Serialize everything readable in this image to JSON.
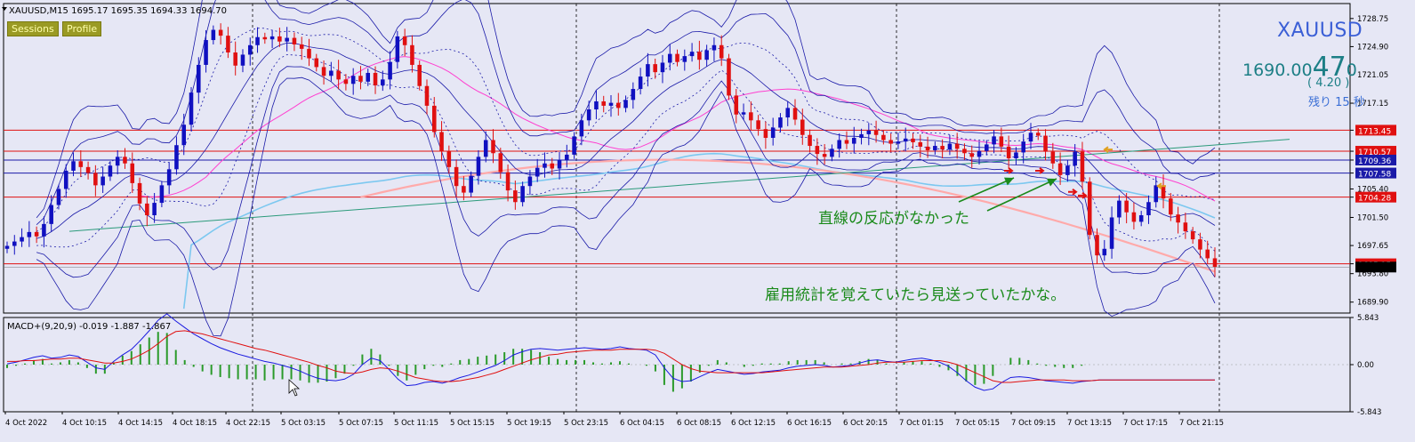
{
  "header": {
    "symbol_info": "XAUUSD,M15  1695.17 1695.35 1694.33 1694.70",
    "sessions_label": "Sessions",
    "profile_label": "Profile"
  },
  "quote": {
    "symbol": "XAUUSD",
    "bid_main": "1690.00",
    "bid_big": "47",
    "bid_small": "0",
    "change": "( 4.20 )",
    "remaining": "残り 15 秒"
  },
  "annotations": {
    "line_note": "直線の反応がなかった",
    "nfp_note": "雇用統計を覚えていたら見送っていたかな。"
  },
  "colors": {
    "background": "#e6e7f5",
    "bull_candle": "#1010c0",
    "bear_candle": "#e01010",
    "bollinger": "#1a1aa8",
    "ma_pink": "#ff40d0",
    "ma_salmon": "#ffaaaa",
    "ma_skyblue": "#7cc8f0",
    "trendline": "#2a9a7a",
    "macd_signal": "#e01010",
    "macd_line": "#1a1ae0",
    "macd_hist": "#2a9a2a",
    "annotation_arrow": "#1a8a1a"
  },
  "chart_data": [
    {
      "type": "candlestick",
      "title": "XAUUSD,M15",
      "ylim": [
        1688.4,
        1730.8
      ],
      "y_ticks": [
        "1728.75",
        "1724.90",
        "1721.05",
        "1717.15",
        "1713.45",
        "1710.57",
        "1709.36",
        "1707.58",
        "1705.40",
        "1704.28",
        "1701.50",
        "1697.65",
        "1695.15",
        "1693.80",
        "1689.90"
      ],
      "x_tick_labels": [
        "4 Oct 2022",
        "4 Oct 10:15",
        "4 Oct 14:15",
        "4 Oct 18:15",
        "4 Oct 22:15",
        "5 Oct 03:15",
        "5 Oct 07:15",
        "5 Oct 11:15",
        "5 Oct 15:15",
        "5 Oct 19:15",
        "5 Oct 23:15",
        "6 Oct 04:15",
        "6 Oct 08:15",
        "6 Oct 12:15",
        "6 Oct 16:15",
        "6 Oct 20:15",
        "7 Oct 01:15",
        "7 Oct 05:15",
        "7 Oct 09:15",
        "7 Oct 13:15",
        "7 Oct 17:15",
        "7 Oct 21:15"
      ],
      "horizontal_levels": [
        {
          "value": 1713.45,
          "label": "1713.45",
          "color": "#e01010"
        },
        {
          "value": 1710.57,
          "label": "1710.57",
          "color": "#e01010"
        },
        {
          "value": 1709.36,
          "label": "1709.36",
          "color": "#1a1aa8"
        },
        {
          "value": 1707.58,
          "label": "1707.58",
          "color": "#1a1aa8"
        },
        {
          "value": 1704.28,
          "label": "1704.28",
          "color": "#e01010"
        },
        {
          "value": 1695.15,
          "label": "1695.15",
          "color": "#e01010"
        }
      ],
      "close_series": [
        1697.6,
        1698.2,
        1698.8,
        1699.5,
        1698.9,
        1700.6,
        1703.2,
        1705.4,
        1707.9,
        1709.2,
        1708.4,
        1707.6,
        1705.9,
        1707.1,
        1708.6,
        1709.8,
        1708.9,
        1706.2,
        1703.4,
        1701.8,
        1703.5,
        1705.9,
        1708.1,
        1711.4,
        1714.2,
        1718.6,
        1722.4,
        1725.8,
        1727.2,
        1726.4,
        1724.1,
        1722.3,
        1723.8,
        1725.1,
        1726.2,
        1725.9,
        1726.3,
        1725.6,
        1726.1,
        1725.2,
        1724.6,
        1723.3,
        1722.1,
        1720.9,
        1721.6,
        1720.4,
        1719.8,
        1720.9,
        1720.1,
        1721.3,
        1719.6,
        1720.4,
        1722.8,
        1726.3,
        1725.1,
        1722.4,
        1719.5,
        1716.8,
        1713.2,
        1710.6,
        1708.4,
        1705.8,
        1704.9,
        1707.2,
        1709.8,
        1712.1,
        1710.3,
        1707.7,
        1705.2,
        1703.6,
        1705.8,
        1707.1,
        1708.3,
        1708.9,
        1708.2,
        1709.4,
        1710.1,
        1712.6,
        1714.8,
        1716.3,
        1717.4,
        1716.8,
        1717.2,
        1716.5,
        1717.6,
        1719.1,
        1720.8,
        1722.5,
        1721.4,
        1722.7,
        1723.9,
        1722.8,
        1723.6,
        1724.2,
        1723.1,
        1724.4,
        1725.1,
        1723.3,
        1718.2,
        1715.6,
        1715.9,
        1714.8,
        1713.6,
        1712.4,
        1713.8,
        1715.2,
        1716.5,
        1714.9,
        1712.8,
        1711.3,
        1710.2,
        1709.8,
        1710.9,
        1712.1,
        1711.6,
        1712.4,
        1712.9,
        1713.4,
        1712.8,
        1712.1,
        1711.6,
        1711.9,
        1712.3,
        1711.8,
        1711.2,
        1710.7,
        1711.3,
        1710.8,
        1711.6,
        1710.9,
        1710.3,
        1709.8,
        1710.6,
        1711.5,
        1712.6,
        1711.2,
        1709.6,
        1710.4,
        1711.9,
        1713.1,
        1712.7,
        1710.5,
        1708.9,
        1707.3,
        1708.6,
        1710.5,
        1706.4,
        1699.1,
        1696.3,
        1697.2,
        1701.5,
        1703.8,
        1702.2,
        1700.9,
        1701.8,
        1703.6,
        1705.9,
        1704.1,
        1701.9,
        1700.8,
        1699.6,
        1698.5,
        1697.1,
        1695.9,
        1694.7
      ]
    },
    {
      "type": "line",
      "title": "MACD+(9,20,9) -0.019 -1.887 -1.867",
      "ylim": [
        -5.843,
        5.843
      ],
      "y_ticks": [
        "5.843",
        "0.00",
        "-5.843"
      ],
      "x": [
        0,
        10,
        20,
        30,
        40,
        50,
        60,
        70,
        80,
        90,
        100,
        110,
        120,
        130,
        140,
        150,
        160,
        170,
        180,
        190,
        200,
        210,
        220,
        230,
        240,
        250,
        260,
        270,
        280,
        290,
        300,
        310,
        320,
        330,
        340,
        350,
        360,
        370,
        380,
        390,
        400,
        410,
        420,
        430,
        440,
        450,
        460,
        470,
        480,
        490,
        500,
        510,
        520,
        530,
        540,
        550,
        560,
        570,
        580,
        590,
        600,
        610,
        620,
        630,
        640,
        650,
        660,
        670,
        680,
        690,
        700,
        710,
        720,
        730,
        740,
        750,
        760,
        770,
        780,
        790,
        800,
        810,
        820,
        830,
        840,
        850,
        860,
        870,
        880,
        890,
        900,
        910,
        920,
        930,
        940,
        950,
        960,
        970,
        980,
        990,
        1000,
        1010,
        1020,
        1030,
        1040,
        1050,
        1060,
        1070,
        1080,
        1090,
        1100,
        1110,
        1120,
        1130,
        1140,
        1150,
        1160,
        1170,
        1180,
        1190,
        1200,
        1210,
        1220,
        1230,
        1240,
        1250,
        1260,
        1270,
        1280,
        1290,
        1300,
        1310,
        1320,
        1330,
        1340,
        1350,
        1360
      ],
      "series": [
        {
          "name": "",
          "color": "#1a1ae0",
          "values": [
            0.1,
            0.3,
            0.6,
            0.9,
            1.1,
            0.8,
            0.9,
            1.2,
            1.0,
            0.3,
            -0.4,
            -0.6,
            0.4,
            1.2,
            1.9,
            3.0,
            4.2,
            5.5,
            6.3,
            5.4,
            4.6,
            3.8,
            3.2,
            2.6,
            2.1,
            1.7,
            1.3,
            1.0,
            0.7,
            0.4,
            0.2,
            -0.1,
            -0.4,
            -0.8,
            -1.3,
            -1.7,
            -1.9,
            -2.0,
            -1.8,
            -1.2,
            0.0,
            0.8,
            0.5,
            -0.6,
            -1.8,
            -2.6,
            -2.5,
            -2.2,
            -2.1,
            -2.3,
            -2.0,
            -1.6,
            -1.3,
            -0.9,
            -0.5,
            -0.1,
            0.5,
            1.2,
            1.6,
            1.9,
            2.0,
            1.9,
            1.8,
            1.9,
            2.0,
            2.1,
            2.0,
            1.9,
            2.0,
            2.2,
            2.0,
            1.9,
            1.8,
            1.2,
            -0.4,
            -1.7,
            -2.1,
            -2.0,
            -1.5,
            -1.0,
            -0.6,
            -0.8,
            -1.0,
            -1.2,
            -1.1,
            -0.9,
            -0.8,
            -0.7,
            -0.4,
            -0.2,
            -0.1,
            0.0,
            -0.1,
            -0.3,
            -0.2,
            -0.1,
            0.2,
            0.5,
            0.6,
            0.4,
            0.3,
            0.5,
            0.7,
            0.8,
            0.6,
            0.3,
            -0.2,
            -1.0,
            -2.0,
            -2.8,
            -3.2,
            -3.0,
            -2.2,
            -1.6,
            -1.5,
            -1.6,
            -1.8,
            -2.0,
            -2.1,
            -2.2,
            -2.3,
            -2.1,
            -2.0,
            -1.9,
            -1.9,
            -1.9,
            -1.9,
            -1.9,
            -1.9,
            -1.9,
            -1.9,
            -1.9,
            -1.9,
            -1.9,
            -1.9,
            -1.9,
            -1.9
          ]
        },
        {
          "name": "",
          "color": "#e01010",
          "values": [
            0.4,
            0.4,
            0.5,
            0.5,
            0.6,
            0.7,
            0.7,
            0.8,
            0.8,
            0.6,
            0.4,
            0.2,
            0.2,
            0.4,
            0.7,
            1.2,
            1.8,
            2.6,
            3.5,
            4.1,
            4.2,
            4.0,
            3.8,
            3.5,
            3.2,
            2.9,
            2.6,
            2.3,
            2.0,
            1.8,
            1.5,
            1.2,
            0.9,
            0.6,
            0.3,
            -0.1,
            -0.4,
            -0.8,
            -1.0,
            -1.1,
            -0.9,
            -0.6,
            -0.4,
            -0.5,
            -0.8,
            -1.2,
            -1.6,
            -1.8,
            -2.0,
            -2.1,
            -2.1,
            -2.0,
            -1.8,
            -1.6,
            -1.3,
            -1.0,
            -0.6,
            -0.2,
            0.2,
            0.6,
            0.9,
            1.2,
            1.3,
            1.5,
            1.6,
            1.7,
            1.8,
            1.8,
            1.8,
            1.9,
            1.9,
            1.9,
            1.9,
            1.8,
            1.4,
            0.7,
            0.0,
            -0.5,
            -0.8,
            -0.9,
            -1.0,
            -1.0,
            -1.0,
            -1.0,
            -1.0,
            -1.0,
            -0.9,
            -0.8,
            -0.7,
            -0.6,
            -0.5,
            -0.4,
            -0.3,
            -0.3,
            -0.3,
            -0.2,
            -0.1,
            0.0,
            0.2,
            0.3,
            0.3,
            0.3,
            0.4,
            0.5,
            0.5,
            0.5,
            0.3,
            0.0,
            -0.5,
            -1.0,
            -1.5,
            -2.0,
            -2.2,
            -2.2,
            -2.1,
            -2.0,
            -1.9,
            -1.9,
            -1.9,
            -1.9,
            -2.0,
            -2.0,
            -2.0,
            -1.9,
            -1.9,
            -1.9,
            -1.9,
            -1.9,
            -1.9,
            -1.9,
            -1.9,
            -1.9,
            -1.9,
            -1.9,
            -1.9,
            -1.9,
            -1.9
          ]
        }
      ]
    }
  ]
}
